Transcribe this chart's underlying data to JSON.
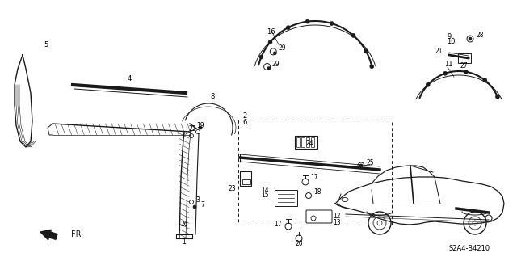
{
  "diagram_code": "S2A4-B4210",
  "background_color": "#ffffff",
  "line_color": "#1a1a1a",
  "figsize": [
    6.4,
    3.18
  ],
  "dpi": 100
}
